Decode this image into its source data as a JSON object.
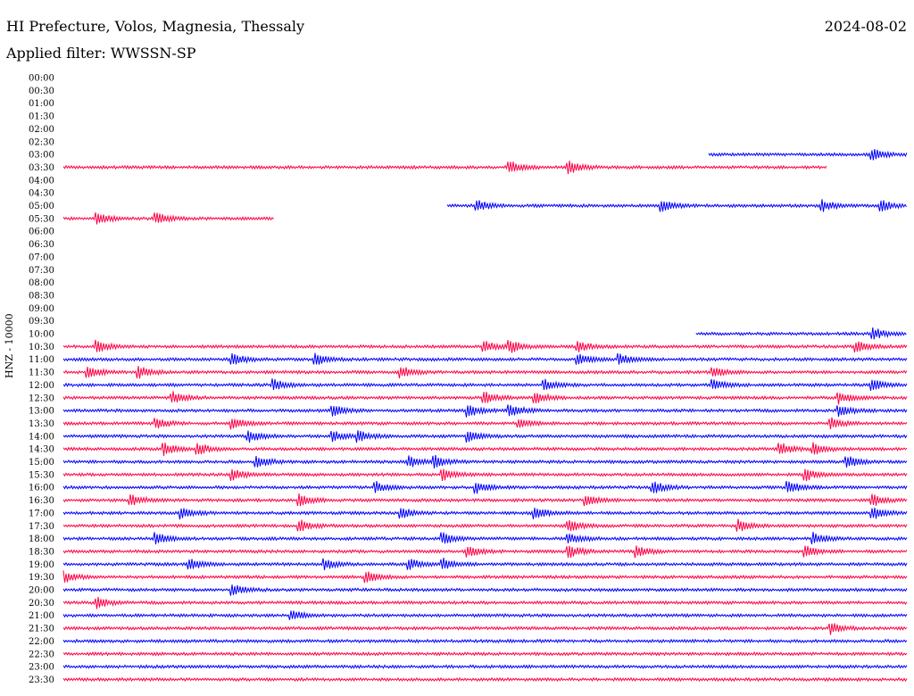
{
  "header": {
    "station": "HI Prefecture, Volos, Magnesia, Thessaly",
    "date": "2024-08-02",
    "filter": "Applied filter: WWSSN-SP"
  },
  "chart_data": {
    "type": "line",
    "title": "HI Prefecture, Volos, Magnesia, Thessaly",
    "ylabel": "HNZ - 10000",
    "colors": {
      "odd_rows": "#ff0044",
      "even_rows": "#0000ff"
    },
    "rows": [
      {
        "time": "00:00",
        "start": null,
        "end": null,
        "events": []
      },
      {
        "time": "00:30",
        "start": null,
        "end": null,
        "events": []
      },
      {
        "time": "01:00",
        "start": null,
        "end": null,
        "events": []
      },
      {
        "time": "01:30",
        "start": null,
        "end": null,
        "events": []
      },
      {
        "time": "02:00",
        "start": null,
        "end": null,
        "events": []
      },
      {
        "time": "02:30",
        "start": null,
        "end": null,
        "events": []
      },
      {
        "time": "03:00",
        "start": 0.765,
        "end": 1.0,
        "events": [
          0.96
        ]
      },
      {
        "time": "03:30",
        "start": 0.0,
        "end": 0.905,
        "events": [
          0.53,
          0.6
        ]
      },
      {
        "time": "04:00",
        "start": null,
        "end": null,
        "events": []
      },
      {
        "time": "04:30",
        "start": null,
        "end": null,
        "events": []
      },
      {
        "time": "05:00",
        "start": 0.455,
        "end": 1.0,
        "events": [
          0.49,
          0.71,
          0.9,
          0.97
        ]
      },
      {
        "time": "05:30",
        "start": 0.0,
        "end": 0.25,
        "events": [
          0.04,
          0.11
        ]
      },
      {
        "time": "06:00",
        "start": null,
        "end": null,
        "events": []
      },
      {
        "time": "06:30",
        "start": null,
        "end": null,
        "events": []
      },
      {
        "time": "07:00",
        "start": null,
        "end": null,
        "events": []
      },
      {
        "time": "07:30",
        "start": null,
        "end": null,
        "events": []
      },
      {
        "time": "08:00",
        "start": null,
        "end": null,
        "events": []
      },
      {
        "time": "08:30",
        "start": null,
        "end": null,
        "events": []
      },
      {
        "time": "09:00",
        "start": null,
        "end": null,
        "events": []
      },
      {
        "time": "09:30",
        "start": null,
        "end": null,
        "events": []
      },
      {
        "time": "10:00",
        "start": 0.75,
        "end": 1.0,
        "events": [
          0.96
        ]
      },
      {
        "time": "10:30",
        "start": 0.0,
        "end": 1.0,
        "events": [
          0.04,
          0.5,
          0.53,
          0.61,
          0.94
        ]
      },
      {
        "time": "11:00",
        "start": 0.0,
        "end": 1.0,
        "events": [
          0.2,
          0.3,
          0.61,
          0.66
        ]
      },
      {
        "time": "11:30",
        "start": 0.0,
        "end": 1.0,
        "events": [
          0.03,
          0.09,
          0.4,
          0.77
        ]
      },
      {
        "time": "12:00",
        "start": 0.0,
        "end": 1.0,
        "events": [
          0.25,
          0.57,
          0.77,
          0.96
        ]
      },
      {
        "time": "12:30",
        "start": 0.0,
        "end": 1.0,
        "events": [
          0.13,
          0.5,
          0.56,
          0.92
        ]
      },
      {
        "time": "13:00",
        "start": 0.0,
        "end": 1.0,
        "events": [
          0.32,
          0.48,
          0.53,
          0.92
        ]
      },
      {
        "time": "13:30",
        "start": 0.0,
        "end": 1.0,
        "events": [
          0.11,
          0.2,
          0.54,
          0.91
        ]
      },
      {
        "time": "14:00",
        "start": 0.0,
        "end": 1.0,
        "events": [
          0.22,
          0.32,
          0.35,
          0.48
        ]
      },
      {
        "time": "14:30",
        "start": 0.0,
        "end": 1.0,
        "events": [
          0.12,
          0.16,
          0.85,
          0.89
        ]
      },
      {
        "time": "15:00",
        "start": 0.0,
        "end": 1.0,
        "events": [
          0.23,
          0.41,
          0.44,
          0.93
        ]
      },
      {
        "time": "15:30",
        "start": 0.0,
        "end": 1.0,
        "events": [
          0.2,
          0.45,
          0.88
        ]
      },
      {
        "time": "16:00",
        "start": 0.0,
        "end": 1.0,
        "events": [
          0.37,
          0.49,
          0.7,
          0.86
        ]
      },
      {
        "time": "16:30",
        "start": 0.0,
        "end": 1.0,
        "events": [
          0.08,
          0.28,
          0.62,
          0.96
        ]
      },
      {
        "time": "17:00",
        "start": 0.0,
        "end": 1.0,
        "events": [
          0.14,
          0.4,
          0.56,
          0.96
        ]
      },
      {
        "time": "17:30",
        "start": 0.0,
        "end": 1.0,
        "events": [
          0.28,
          0.6,
          0.8
        ]
      },
      {
        "time": "18:00",
        "start": 0.0,
        "end": 1.0,
        "events": [
          0.11,
          0.45,
          0.6,
          0.89
        ]
      },
      {
        "time": "18:30",
        "start": 0.0,
        "end": 1.0,
        "events": [
          0.48,
          0.6,
          0.68,
          0.88
        ]
      },
      {
        "time": "19:00",
        "start": 0.0,
        "end": 1.0,
        "events": [
          0.15,
          0.31,
          0.41,
          0.45
        ]
      },
      {
        "time": "19:30",
        "start": 0.0,
        "end": 1.0,
        "events": [
          0.0,
          0.36
        ]
      },
      {
        "time": "20:00",
        "start": 0.0,
        "end": 1.0,
        "events": [
          0.2
        ]
      },
      {
        "time": "20:30",
        "start": 0.0,
        "end": 1.0,
        "events": [
          0.04
        ]
      },
      {
        "time": "21:00",
        "start": 0.0,
        "end": 1.0,
        "events": [
          0.27
        ]
      },
      {
        "time": "21:30",
        "start": 0.0,
        "end": 1.0,
        "events": [
          0.91
        ]
      },
      {
        "time": "22:00",
        "start": 0.0,
        "end": 1.0,
        "events": []
      },
      {
        "time": "22:30",
        "start": 0.0,
        "end": 1.0,
        "events": []
      },
      {
        "time": "23:00",
        "start": 0.0,
        "end": 1.0,
        "events": []
      },
      {
        "time": "23:30",
        "start": 0.0,
        "end": 1.0,
        "events": []
      }
    ]
  }
}
